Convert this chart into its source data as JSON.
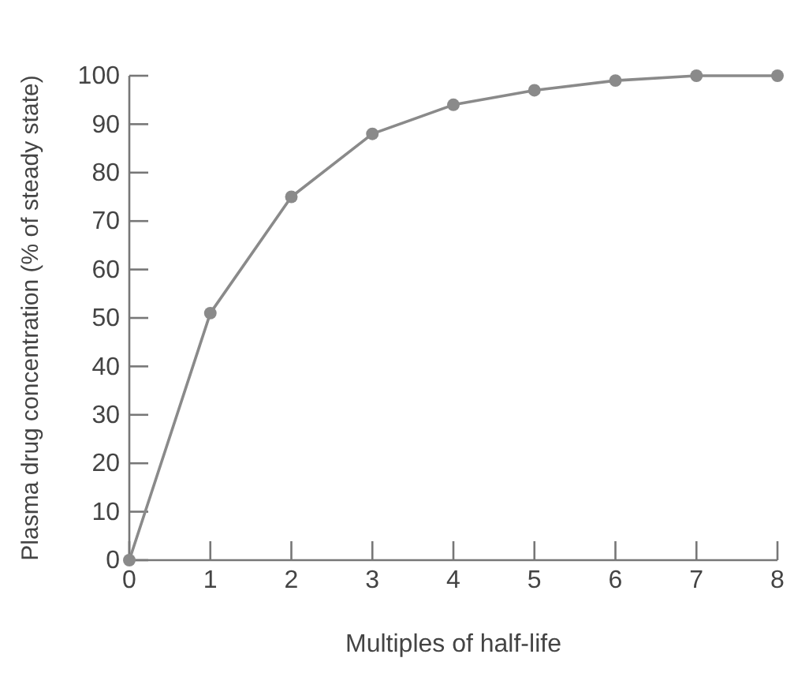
{
  "chart_data": {
    "type": "line",
    "xlabel": "Multiples of half-life",
    "ylabel": "Plasma drug concentration (% of steady state)",
    "x": [
      0,
      1,
      2,
      3,
      4,
      5,
      6,
      7,
      8
    ],
    "series": [
      {
        "color": "#8a8a8a",
        "values": [
          0,
          51,
          75,
          88,
          94,
          97,
          99,
          100,
          100
        ]
      }
    ],
    "xlim": [
      0,
      8
    ],
    "xticks": [
      0,
      1,
      2,
      3,
      4,
      5,
      6,
      7,
      8
    ],
    "ylim": [
      0,
      100
    ],
    "yticks": [
      0,
      10,
      20,
      30,
      40,
      50,
      60,
      70,
      80,
      90,
      100
    ],
    "marker": "circle",
    "line_style": "solid"
  }
}
